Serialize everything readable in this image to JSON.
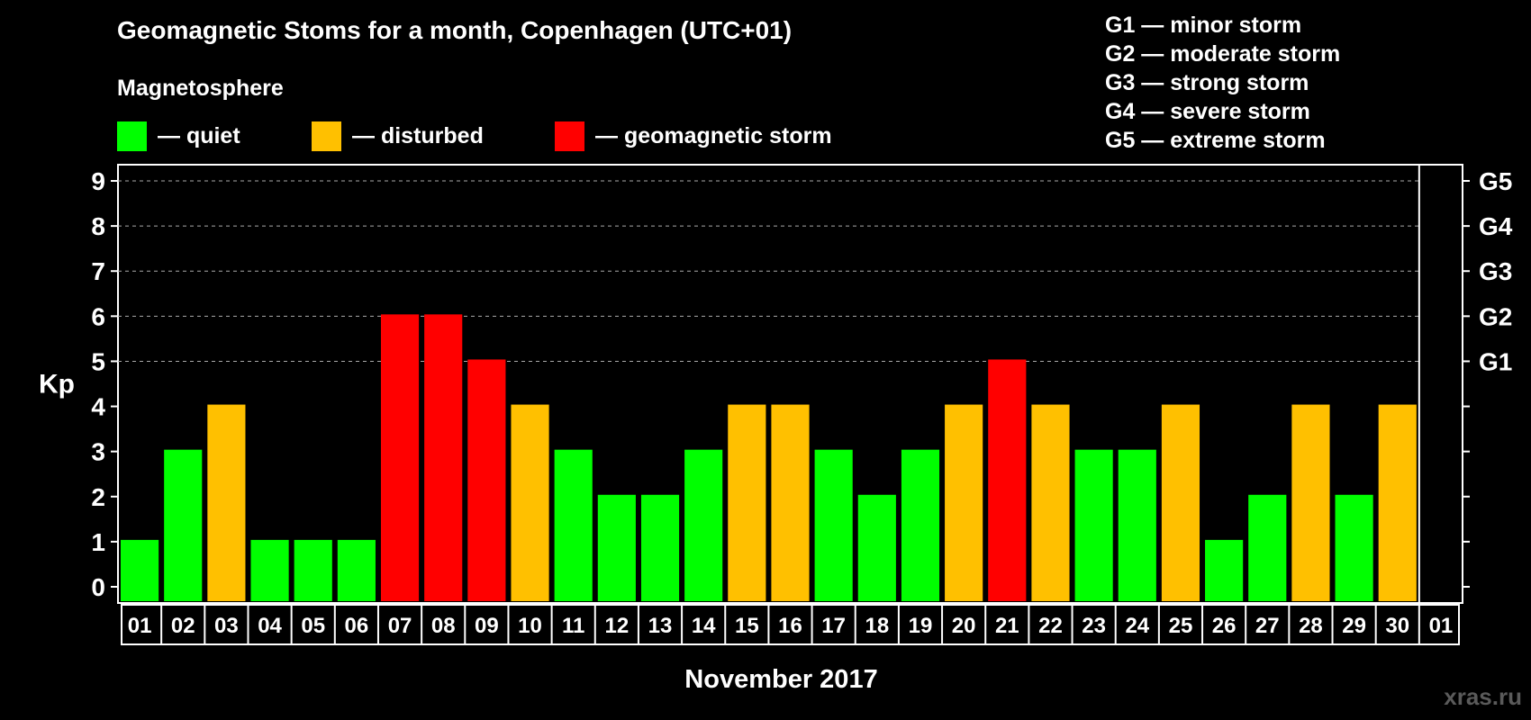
{
  "header": {
    "title": "Geomagnetic Stoms for a month, Copenhagen (UTC+01)",
    "subtitle": "Magnetosphere"
  },
  "legend": [
    {
      "label": "— quiet",
      "color": "#00ff00"
    },
    {
      "label": "— disturbed",
      "color": "#ffc000"
    },
    {
      "label": "— geomagnetic storm",
      "color": "#ff0000"
    }
  ],
  "storm_scale": [
    "G1 — minor storm",
    "G2 — moderate storm",
    "G3 — strong storm",
    "G4 — severe storm",
    "G5 — extreme storm"
  ],
  "watermark": "xras.ru",
  "chart_data": {
    "type": "bar",
    "ylabel": "Kp",
    "xlabel": "November 2017",
    "ylim": [
      0,
      9
    ],
    "yticks": [
      0,
      1,
      2,
      3,
      4,
      5,
      6,
      7,
      8,
      9
    ],
    "right_axis_labels": [
      {
        "value": 5,
        "label": "G1"
      },
      {
        "value": 6,
        "label": "G2"
      },
      {
        "value": 7,
        "label": "G3"
      },
      {
        "value": 8,
        "label": "G4"
      },
      {
        "value": 9,
        "label": "G5"
      }
    ],
    "categories": [
      "01",
      "02",
      "03",
      "04",
      "05",
      "06",
      "07",
      "08",
      "09",
      "10",
      "11",
      "12",
      "13",
      "14",
      "15",
      "16",
      "17",
      "18",
      "19",
      "20",
      "21",
      "22",
      "23",
      "24",
      "25",
      "26",
      "27",
      "28",
      "29",
      "30",
      "01"
    ],
    "values": [
      1,
      3,
      4,
      1,
      1,
      1,
      6,
      6,
      5,
      4,
      3,
      2,
      2,
      3,
      4,
      4,
      3,
      2,
      3,
      4,
      5,
      4,
      3,
      3,
      4,
      1,
      2,
      4,
      2,
      4,
      null
    ],
    "colors": {
      "quiet": "#00ff00",
      "disturbed": "#ffc000",
      "storm": "#ff0000"
    },
    "grid": true,
    "gridlines_at": [
      5,
      6,
      7,
      8,
      9
    ]
  }
}
